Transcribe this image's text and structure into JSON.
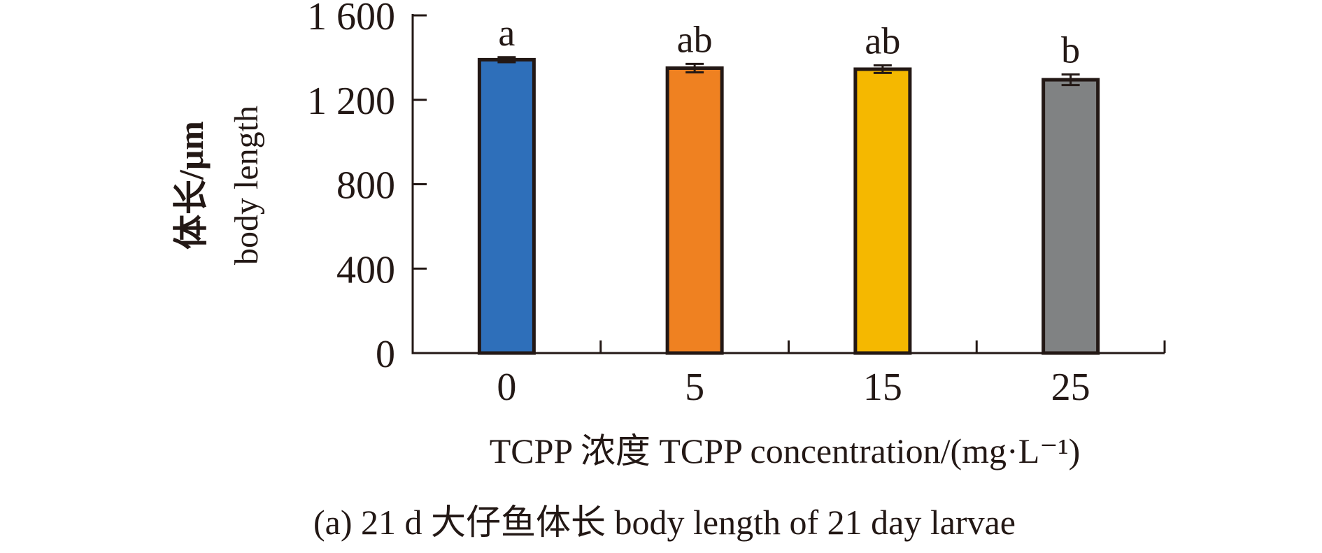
{
  "chart_data": {
    "type": "bar",
    "categories": [
      "0",
      "5",
      "15",
      "25"
    ],
    "values": [
      1390,
      1350,
      1345,
      1295
    ],
    "errors": [
      12,
      20,
      18,
      25
    ],
    "significance_letters": [
      "a",
      "ab",
      "ab",
      "b"
    ],
    "colors": [
      "#2e6fba",
      "#ef8121",
      "#f5b800",
      "#808283"
    ],
    "ylim": [
      0,
      1600
    ],
    "yticks": [
      0,
      400,
      800,
      1200,
      1600
    ],
    "ytick_labels": [
      "0",
      "400",
      "800",
      "1 200",
      "1 600"
    ],
    "ylabel_cn": "体长/μm",
    "ylabel_en": "body length",
    "xlabel": "TCPP 浓度 TCPP concentration/(mg·L⁻¹)",
    "caption": "(a) 21 d 大仔鱼体长 body length of 21 day larvae"
  }
}
